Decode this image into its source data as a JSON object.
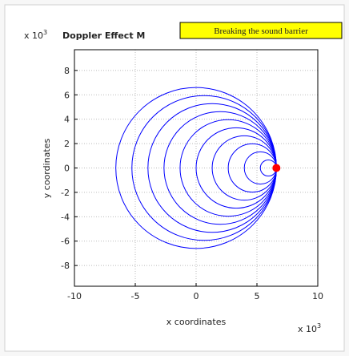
{
  "chart_data": {
    "type": "circles",
    "title": "Doppler Effect M",
    "annotation": "Breaking the sound barrier",
    "xlabel": "x coordinates",
    "ylabel": "y coordinates",
    "x_exponent": {
      "base": "x 10",
      "power": "3"
    },
    "y_exponent": {
      "base": "x 10",
      "power": "3"
    },
    "xlim": [
      -10,
      10
    ],
    "ylim": [
      -9.7,
      9.7
    ],
    "xticks": [
      -10,
      -5,
      0,
      5,
      10
    ],
    "yticks": [
      -8,
      -6,
      -4,
      -2,
      0,
      2,
      4,
      6,
      8
    ],
    "grid": true,
    "circles": {
      "color": "#0000ff",
      "x": [
        0,
        0.66,
        1.32,
        1.98,
        2.64,
        3.3,
        3.96,
        4.62,
        5.28,
        5.94
      ],
      "r": [
        6.6,
        5.94,
        5.28,
        4.62,
        3.96,
        3.3,
        2.64,
        1.98,
        1.32,
        0.66
      ]
    },
    "source": {
      "x": 6.6,
      "y": 0,
      "color": "#ff0000"
    }
  }
}
